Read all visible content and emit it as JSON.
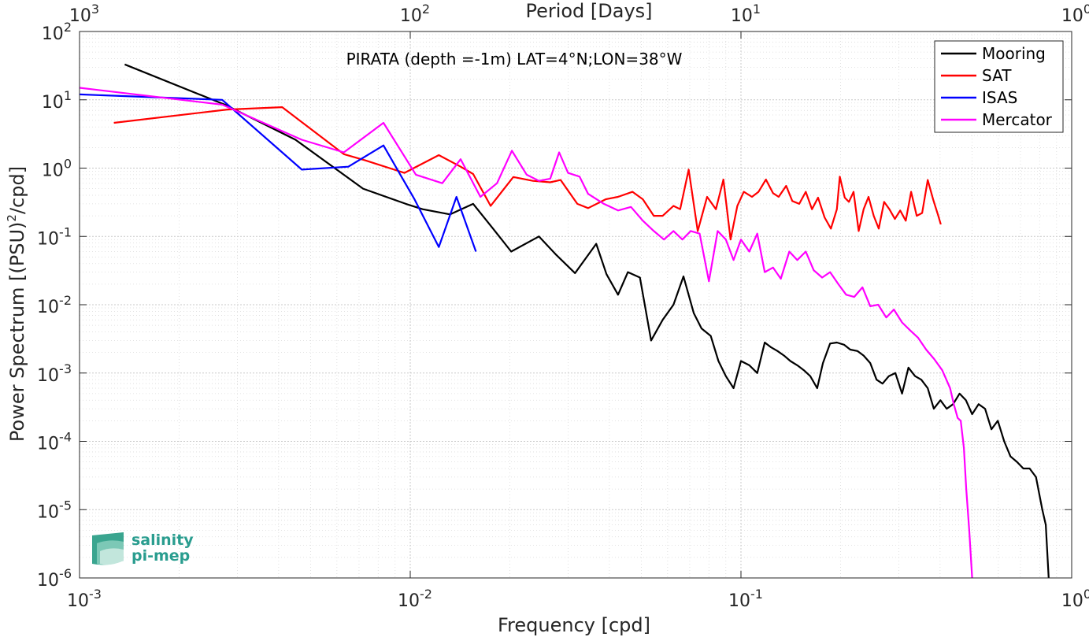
{
  "chart_data": {
    "type": "line",
    "title": "PIRATA (depth =-1m) LAT=4°N;LON=38°W",
    "xlabel": "Frequency [cpd]",
    "ylabel": "Power Spectrum [(PSU)²/cpd]",
    "ylabel_parts": {
      "base": "Power Spectrum [(PSU)",
      "exp": "2",
      "tail": "/cpd]"
    },
    "top_xlabel": "Period [Days]",
    "xscale": "log",
    "yscale": "log",
    "xlim": [
      0.001,
      1
    ],
    "ylim": [
      1e-06,
      100
    ],
    "grid": "major+minor, dotted",
    "legend_position": "top-right",
    "x_ticks": [
      {
        "value": 0.001,
        "base": "10",
        "exp": "-3"
      },
      {
        "value": 0.01,
        "base": "10",
        "exp": "-2"
      },
      {
        "value": 0.1,
        "base": "10",
        "exp": "-1"
      },
      {
        "value": 1,
        "base": "10",
        "exp": "0"
      }
    ],
    "top_ticks": [
      {
        "value": 0.001,
        "base": "10",
        "exp": "3"
      },
      {
        "value": 0.01,
        "base": "10",
        "exp": "2"
      },
      {
        "value": 0.1,
        "base": "10",
        "exp": "1"
      },
      {
        "value": 1,
        "base": "10",
        "exp": "0"
      }
    ],
    "y_ticks": [
      {
        "value": 100,
        "base": "10",
        "exp": "2"
      },
      {
        "value": 10,
        "base": "10",
        "exp": "1"
      },
      {
        "value": 1,
        "base": "10",
        "exp": "0"
      },
      {
        "value": 0.1,
        "base": "10",
        "exp": "-1"
      },
      {
        "value": 0.01,
        "base": "10",
        "exp": "-2"
      },
      {
        "value": 0.001,
        "base": "10",
        "exp": "-3"
      },
      {
        "value": 0.0001,
        "base": "10",
        "exp": "-4"
      },
      {
        "value": 1e-05,
        "base": "10",
        "exp": "-5"
      },
      {
        "value": 1e-06,
        "base": "10",
        "exp": "-6"
      }
    ],
    "series": [
      {
        "name": "Mooring",
        "color": "#000000",
        "points": [
          [
            0.00137,
            33
          ],
          [
            0.00275,
            8.5
          ],
          [
            0.0045,
            2.6
          ],
          [
            0.0072,
            0.5
          ],
          [
            0.0097,
            0.3
          ],
          [
            0.0109,
            0.25
          ],
          [
            0.0132,
            0.21
          ],
          [
            0.0155,
            0.3
          ],
          [
            0.0178,
            0.13
          ],
          [
            0.0202,
            0.06
          ],
          [
            0.0245,
            0.1
          ],
          [
            0.0275,
            0.055
          ],
          [
            0.0315,
            0.029
          ],
          [
            0.0365,
            0.078
          ],
          [
            0.0392,
            0.028
          ],
          [
            0.0425,
            0.014
          ],
          [
            0.0455,
            0.03
          ],
          [
            0.0495,
            0.025
          ],
          [
            0.0535,
            0.003
          ],
          [
            0.058,
            0.006
          ],
          [
            0.0625,
            0.01
          ],
          [
            0.067,
            0.026
          ],
          [
            0.072,
            0.0075
          ],
          [
            0.076,
            0.0045
          ],
          [
            0.081,
            0.0035
          ],
          [
            0.0855,
            0.0015
          ],
          [
            0.09,
            0.0009
          ],
          [
            0.095,
            0.0006
          ],
          [
            0.1,
            0.0015
          ],
          [
            0.106,
            0.0013
          ],
          [
            0.112,
            0.001
          ],
          [
            0.118,
            0.0028
          ],
          [
            0.123,
            0.0024
          ],
          [
            0.129,
            0.0021
          ],
          [
            0.135,
            0.0018
          ],
          [
            0.141,
            0.0015
          ],
          [
            0.148,
            0.0013
          ],
          [
            0.155,
            0.0011
          ],
          [
            0.162,
            0.0009
          ],
          [
            0.17,
            0.0006
          ],
          [
            0.177,
            0.0014
          ],
          [
            0.186,
            0.0027
          ],
          [
            0.195,
            0.0028
          ],
          [
            0.205,
            0.0026
          ],
          [
            0.214,
            0.0022
          ],
          [
            0.225,
            0.0021
          ],
          [
            0.235,
            0.0018
          ],
          [
            0.246,
            0.0014
          ],
          [
            0.257,
            0.0008
          ],
          [
            0.268,
            0.0007
          ],
          [
            0.28,
            0.0009
          ],
          [
            0.293,
            0.001
          ],
          [
            0.307,
            0.0005
          ],
          [
            0.321,
            0.0012
          ],
          [
            0.336,
            0.0009
          ],
          [
            0.351,
            0.0008
          ],
          [
            0.367,
            0.0006
          ],
          [
            0.383,
            0.0003
          ],
          [
            0.401,
            0.0004
          ],
          [
            0.419,
            0.0003
          ],
          [
            0.438,
            0.00035
          ],
          [
            0.458,
            0.0005
          ],
          [
            0.479,
            0.0004
          ],
          [
            0.5,
            0.00025
          ],
          [
            0.523,
            0.00035
          ],
          [
            0.547,
            0.0003
          ],
          [
            0.572,
            0.00015
          ],
          [
            0.598,
            0.0002
          ],
          [
            0.625,
            0.0001
          ],
          [
            0.653,
            6e-05
          ],
          [
            0.683,
            5e-05
          ],
          [
            0.714,
            4e-05
          ],
          [
            0.746,
            4e-05
          ],
          [
            0.78,
            3e-05
          ],
          [
            0.815,
            1e-05
          ],
          [
            0.835,
            6e-06
          ],
          [
            0.852,
            1e-06
          ]
        ]
      },
      {
        "name": "SAT",
        "color": "#ff0000",
        "points": [
          [
            0.00127,
            4.6
          ],
          [
            0.0028,
            7.2
          ],
          [
            0.0041,
            7.8
          ],
          [
            0.0063,
            1.6
          ],
          [
            0.0073,
            1.3
          ],
          [
            0.0096,
            0.85
          ],
          [
            0.0122,
            1.55
          ],
          [
            0.0142,
            1.05
          ],
          [
            0.0155,
            0.82
          ],
          [
            0.0175,
            0.28
          ],
          [
            0.0205,
            0.74
          ],
          [
            0.0235,
            0.65
          ],
          [
            0.0265,
            0.62
          ],
          [
            0.0285,
            0.67
          ],
          [
            0.032,
            0.3
          ],
          [
            0.0345,
            0.26
          ],
          [
            0.039,
            0.35
          ],
          [
            0.0425,
            0.38
          ],
          [
            0.047,
            0.45
          ],
          [
            0.0505,
            0.35
          ],
          [
            0.0545,
            0.2
          ],
          [
            0.058,
            0.2
          ],
          [
            0.0625,
            0.28
          ],
          [
            0.0655,
            0.25
          ],
          [
            0.0695,
            0.95
          ],
          [
            0.074,
            0.12
          ],
          [
            0.079,
            0.38
          ],
          [
            0.084,
            0.25
          ],
          [
            0.0885,
            0.68
          ],
          [
            0.093,
            0.09
          ],
          [
            0.0975,
            0.28
          ],
          [
            0.102,
            0.45
          ],
          [
            0.108,
            0.38
          ],
          [
            0.113,
            0.45
          ],
          [
            0.119,
            0.68
          ],
          [
            0.125,
            0.43
          ],
          [
            0.13,
            0.38
          ],
          [
            0.137,
            0.55
          ],
          [
            0.143,
            0.33
          ],
          [
            0.15,
            0.3
          ],
          [
            0.157,
            0.45
          ],
          [
            0.164,
            0.25
          ],
          [
            0.171,
            0.37
          ],
          [
            0.179,
            0.19
          ],
          [
            0.187,
            0.13
          ],
          [
            0.195,
            0.25
          ],
          [
            0.199,
            0.75
          ],
          [
            0.206,
            0.37
          ],
          [
            0.212,
            0.32
          ],
          [
            0.219,
            0.45
          ],
          [
            0.227,
            0.12
          ],
          [
            0.235,
            0.25
          ],
          [
            0.243,
            0.38
          ],
          [
            0.252,
            0.2
          ],
          [
            0.261,
            0.13
          ],
          [
            0.271,
            0.32
          ],
          [
            0.281,
            0.25
          ],
          [
            0.292,
            0.18
          ],
          [
            0.303,
            0.24
          ],
          [
            0.315,
            0.17
          ],
          [
            0.327,
            0.45
          ],
          [
            0.34,
            0.2
          ],
          [
            0.353,
            0.22
          ],
          [
            0.367,
            0.67
          ],
          [
            0.381,
            0.35
          ],
          [
            0.395,
            0.2
          ],
          [
            0.402,
            0.15
          ]
        ]
      },
      {
        "name": "ISAS",
        "color": "#0000ff",
        "points": [
          [
            0.001,
            12
          ],
          [
            0.0027,
            10
          ],
          [
            0.0047,
            0.95
          ],
          [
            0.0065,
            1.05
          ],
          [
            0.0083,
            2.15
          ],
          [
            0.0103,
            0.35
          ],
          [
            0.0122,
            0.07
          ],
          [
            0.0138,
            0.38
          ],
          [
            0.0158,
            0.06
          ]
        ]
      },
      {
        "name": "Mercator",
        "color": "#ff00ff",
        "points": [
          [
            0.001,
            15
          ],
          [
            0.0027,
            8.5
          ],
          [
            0.0047,
            2.6
          ],
          [
            0.0063,
            1.7
          ],
          [
            0.0083,
            4.6
          ],
          [
            0.0104,
            0.8
          ],
          [
            0.0125,
            0.6
          ],
          [
            0.0142,
            1.35
          ],
          [
            0.0163,
            0.38
          ],
          [
            0.0183,
            0.6
          ],
          [
            0.0203,
            1.8
          ],
          [
            0.0225,
            0.8
          ],
          [
            0.0245,
            0.65
          ],
          [
            0.0265,
            0.7
          ],
          [
            0.0282,
            1.7
          ],
          [
            0.03,
            0.85
          ],
          [
            0.0325,
            0.75
          ],
          [
            0.0345,
            0.42
          ],
          [
            0.0385,
            0.3
          ],
          [
            0.0425,
            0.24
          ],
          [
            0.0465,
            0.27
          ],
          [
            0.0505,
            0.17
          ],
          [
            0.0545,
            0.12
          ],
          [
            0.0585,
            0.09
          ],
          [
            0.0625,
            0.12
          ],
          [
            0.0665,
            0.09
          ],
          [
            0.0705,
            0.12
          ],
          [
            0.075,
            0.11
          ],
          [
            0.08,
            0.022
          ],
          [
            0.085,
            0.12
          ],
          [
            0.09,
            0.09
          ],
          [
            0.095,
            0.045
          ],
          [
            0.1,
            0.09
          ],
          [
            0.106,
            0.06
          ],
          [
            0.112,
            0.11
          ],
          [
            0.118,
            0.03
          ],
          [
            0.125,
            0.035
          ],
          [
            0.132,
            0.024
          ],
          [
            0.14,
            0.06
          ],
          [
            0.148,
            0.045
          ],
          [
            0.157,
            0.06
          ],
          [
            0.166,
            0.032
          ],
          [
            0.176,
            0.025
          ],
          [
            0.186,
            0.03
          ],
          [
            0.197,
            0.02
          ],
          [
            0.208,
            0.014
          ],
          [
            0.22,
            0.013
          ],
          [
            0.233,
            0.018
          ],
          [
            0.246,
            0.0095
          ],
          [
            0.26,
            0.01
          ],
          [
            0.275,
            0.0065
          ],
          [
            0.29,
            0.0085
          ],
          [
            0.307,
            0.0055
          ],
          [
            0.325,
            0.0042
          ],
          [
            0.343,
            0.0033
          ],
          [
            0.363,
            0.0022
          ],
          [
            0.384,
            0.0016
          ],
          [
            0.406,
            0.0011
          ],
          [
            0.429,
            0.0006
          ],
          [
            0.44,
            0.00035
          ],
          [
            0.452,
            0.00022
          ],
          [
            0.462,
            0.0002
          ],
          [
            0.472,
            8e-05
          ],
          [
            0.48,
            2e-05
          ],
          [
            0.49,
            5e-06
          ],
          [
            0.5,
            1e-06
          ]
        ]
      }
    ]
  },
  "logo": {
    "line1": "salinity",
    "line2": "pi-mep"
  }
}
